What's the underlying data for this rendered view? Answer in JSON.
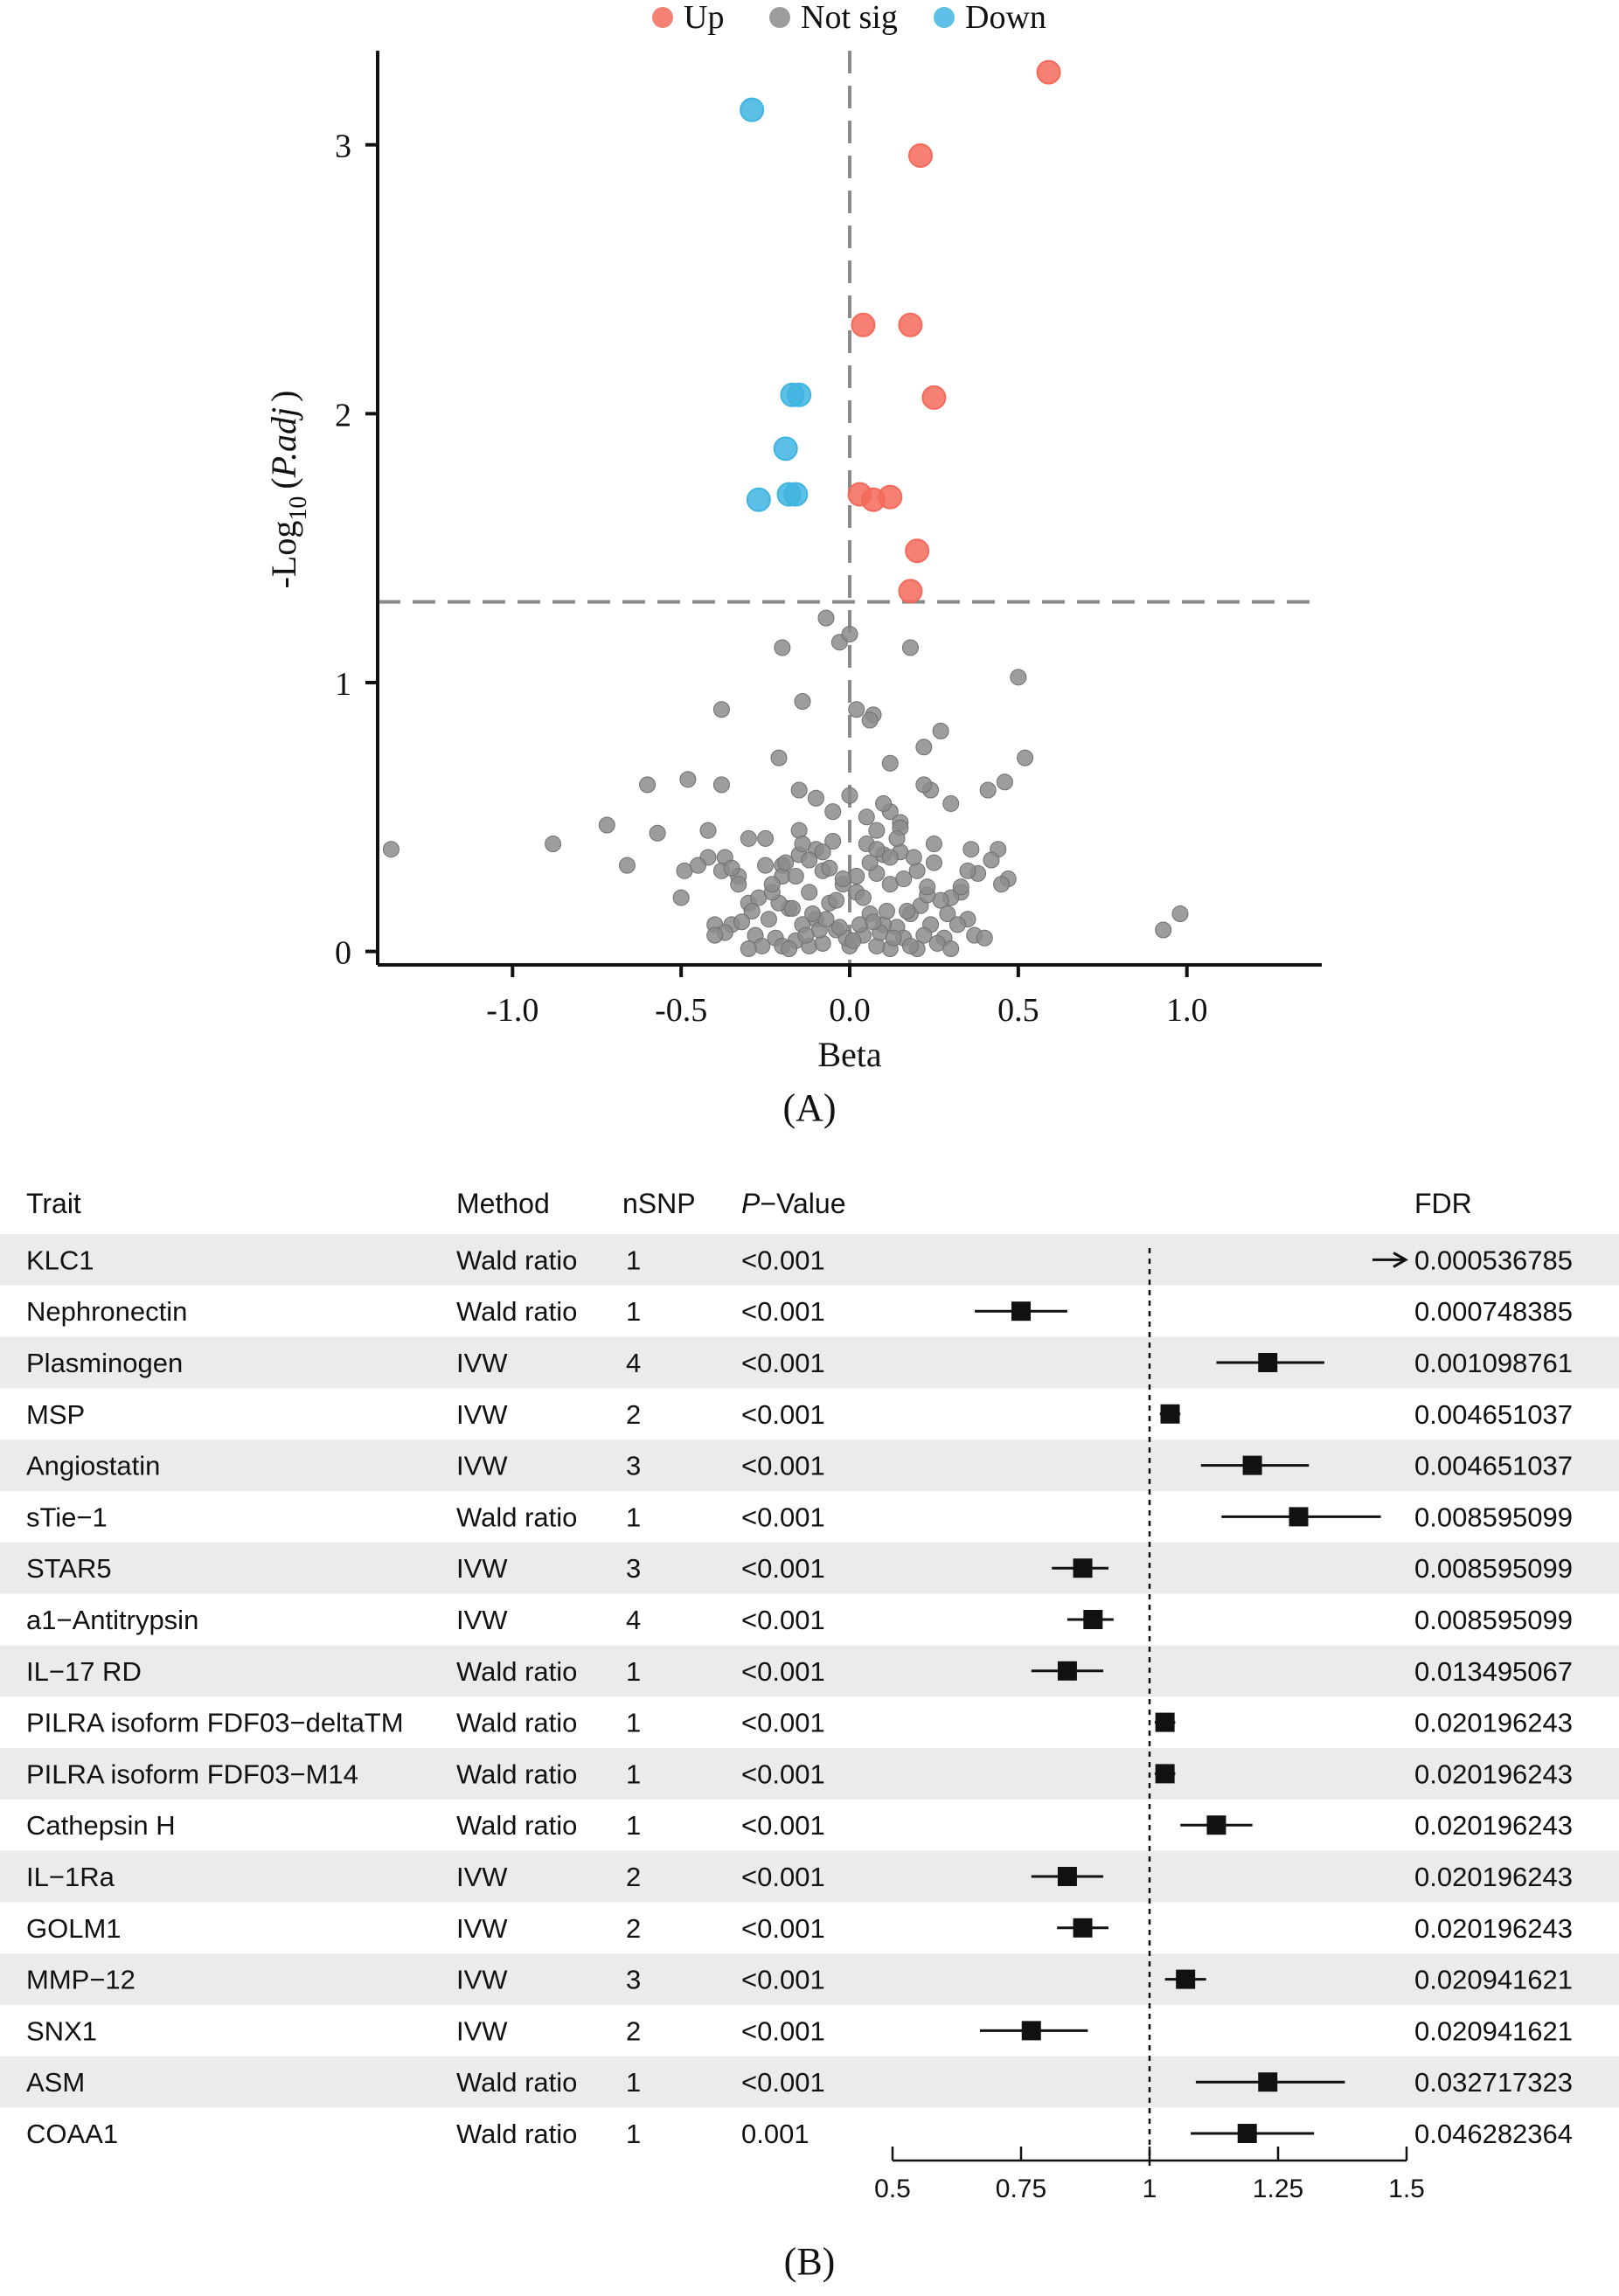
{
  "chart_data": [
    {
      "type": "scatter",
      "panel_label": "(A)",
      "xlabel": "Beta",
      "ylabel_parts": [
        "-Log",
        "10",
        "(",
        "P.adj",
        ")"
      ],
      "xlim": [
        -1.4,
        1.4
      ],
      "ylim": [
        -0.05,
        3.35
      ],
      "xticks": [
        -1.0,
        -0.5,
        0.0,
        0.5,
        1.0
      ],
      "xtick_labels": [
        "-1.0",
        "-0.5",
        "0.0",
        "0.5",
        "1.0"
      ],
      "yticks": [
        0,
        1,
        2,
        3
      ],
      "ytick_labels": [
        "0",
        "1",
        "2",
        "3"
      ],
      "threshold_y": 1.3,
      "threshold_x": 0.0,
      "legend": {
        "position": "top-center",
        "entries": [
          {
            "label": "Up",
            "color": "#f46a5a"
          },
          {
            "label": "Not sig",
            "color": "#8c8c8c"
          },
          {
            "label": "Down",
            "color": "#3fb4e0"
          }
        ]
      },
      "series": [
        {
          "name": "Up",
          "color": "#f46a5a",
          "x": [
            0.59,
            0.21,
            0.04,
            0.18,
            0.25,
            0.03,
            0.07,
            0.12,
            0.2,
            0.18
          ],
          "y": [
            3.27,
            2.96,
            2.33,
            2.33,
            2.06,
            1.7,
            1.68,
            1.69,
            1.49,
            1.34
          ]
        },
        {
          "name": "Down",
          "color": "#3fb4e0",
          "x": [
            -0.29,
            -0.17,
            -0.15,
            -0.19,
            -0.27,
            -0.18,
            -0.16
          ],
          "y": [
            3.13,
            2.07,
            2.07,
            1.87,
            1.68,
            1.7,
            1.7
          ]
        },
        {
          "name": "Not sig",
          "color": "#8c8c8c",
          "x": [
            -0.07,
            0.18,
            -0.03,
            -0.2,
            0.0,
            0.5,
            -0.38,
            0.02,
            0.07,
            -0.14,
            0.06,
            0.22,
            0.27,
            -0.21,
            0.52,
            -0.6,
            -0.48,
            -0.38,
            -0.15,
            0.46,
            0.12,
            0.24,
            -1.36,
            -0.88,
            -0.72,
            -0.57,
            -0.42,
            -0.3,
            0.12,
            0.22,
            0.3,
            0.41,
            -0.66,
            -0.49,
            -0.37,
            -0.2,
            0.08,
            0.15,
            0.36,
            0.44,
            0.47,
            0.93,
            0.98,
            -0.4,
            0.45,
            -0.5,
            -0.33,
            0.33,
            -0.25,
            0.25,
            -0.1,
            0.1,
            -0.05,
            0.05,
            -0.15,
            0.15,
            -0.2,
            0.2,
            -0.3,
            0.3,
            -0.12,
            0.12,
            -0.08,
            0.08,
            -0.02,
            0.02,
            -0.18,
            0.18,
            -0.24,
            0.24,
            -0.35,
            0.35,
            -0.28,
            0.28,
            -0.06,
            0.06,
            -0.14,
            0.14,
            -0.22,
            0.22,
            -0.1,
            0.1,
            -0.04,
            0.04,
            -0.16,
            0.16,
            -0.26,
            0.26,
            -0.12,
            0.12,
            -0.2,
            0.2,
            -0.08,
            0.08,
            -0.3,
            0.3,
            -0.18,
            0.18,
            0.0,
            -0.01,
            0.01,
            -0.09,
            0.09,
            -0.13,
            0.13,
            -0.03,
            0.03,
            -0.07,
            0.07,
            -0.11,
            0.11,
            -0.21,
            0.21,
            -0.27,
            0.27,
            -0.17,
            0.17,
            -0.23,
            0.23,
            -0.33,
            0.33,
            -0.38,
            0.38,
            -0.42,
            0.42,
            -0.45,
            0.05,
            -0.05,
            0.15,
            -0.15,
            0.25,
            -0.25,
            0.35,
            -0.35,
            0.1,
            -0.1,
            0.0,
            0.02,
            -0.02,
            0.06,
            -0.06,
            0.04,
            -0.04,
            0.08,
            -0.08,
            0.12,
            -0.12,
            0.14,
            -0.14,
            0.16,
            -0.16,
            0.19,
            -0.19,
            0.23,
            -0.23,
            0.29,
            -0.29,
            0.32,
            -0.32,
            0.37,
            -0.37,
            0.4,
            -0.4
          ],
          "y": [
            1.24,
            1.13,
            1.15,
            1.13,
            1.18,
            1.02,
            0.9,
            0.9,
            0.88,
            0.93,
            0.86,
            0.76,
            0.82,
            0.72,
            0.72,
            0.62,
            0.64,
            0.62,
            0.6,
            0.63,
            0.7,
            0.6,
            0.38,
            0.4,
            0.47,
            0.44,
            0.45,
            0.42,
            0.52,
            0.62,
            0.55,
            0.6,
            0.32,
            0.3,
            0.35,
            0.32,
            0.45,
            0.48,
            0.38,
            0.38,
            0.27,
            0.08,
            0.14,
            0.1,
            0.25,
            0.2,
            0.28,
            0.22,
            0.32,
            0.33,
            0.38,
            0.36,
            0.41,
            0.4,
            0.36,
            0.37,
            0.28,
            0.3,
            0.18,
            0.2,
            0.22,
            0.25,
            0.3,
            0.29,
            0.25,
            0.22,
            0.16,
            0.14,
            0.12,
            0.1,
            0.1,
            0.12,
            0.06,
            0.05,
            0.18,
            0.14,
            0.1,
            0.09,
            0.05,
            0.06,
            0.12,
            0.1,
            0.08,
            0.06,
            0.04,
            0.05,
            0.02,
            0.03,
            0.02,
            0.01,
            0.02,
            0.01,
            0.03,
            0.02,
            0.01,
            0.01,
            0.01,
            0.02,
            0.02,
            0.05,
            0.04,
            0.08,
            0.07,
            0.06,
            0.05,
            0.09,
            0.1,
            0.12,
            0.11,
            0.14,
            0.15,
            0.18,
            0.17,
            0.2,
            0.19,
            0.16,
            0.15,
            0.22,
            0.21,
            0.25,
            0.24,
            0.3,
            0.29,
            0.35,
            0.34,
            0.32,
            0.5,
            0.52,
            0.46,
            0.45,
            0.4,
            0.42,
            0.3,
            0.31,
            0.55,
            0.57,
            0.58,
            0.28,
            0.27,
            0.33,
            0.31,
            0.2,
            0.19,
            0.38,
            0.37,
            0.35,
            0.34,
            0.42,
            0.4,
            0.27,
            0.28,
            0.35,
            0.33,
            0.24,
            0.25,
            0.14,
            0.15,
            0.1,
            0.11,
            0.06,
            0.07,
            0.05,
            0.06
          ]
        }
      ]
    },
    {
      "type": "forest",
      "panel_label": "(B)",
      "headers": {
        "trait": "Trait",
        "method": "Method",
        "nsnp": "nSNP",
        "p_italic": "P",
        "p_rest": "−Value",
        "fdr": "FDR"
      },
      "xlim": [
        0.5,
        1.5
      ],
      "xticks": [
        0.5,
        0.75,
        1,
        1.25,
        1.5
      ],
      "xtick_labels": [
        "0.5",
        "0.75",
        "1",
        "1.25",
        "1.5"
      ],
      "reference_line": 1,
      "rows": [
        {
          "trait": "KLC1",
          "method": "Wald ratio",
          "nsnp": "1",
          "p": "<0.001",
          "fdr": "0.000536785",
          "or": null,
          "lo": null,
          "hi": null,
          "arrow_right": true
        },
        {
          "trait": "Nephronectin",
          "method": "Wald ratio",
          "nsnp": "1",
          "p": "<0.001",
          "fdr": "0.000748385",
          "or": 0.75,
          "lo": 0.66,
          "hi": 0.84,
          "arrow_right": false
        },
        {
          "trait": "Plasminogen",
          "method": "IVW",
          "nsnp": "4",
          "p": "<0.001",
          "fdr": "0.001098761",
          "or": 1.23,
          "lo": 1.13,
          "hi": 1.34,
          "arrow_right": false
        },
        {
          "trait": "MSP",
          "method": "IVW",
          "nsnp": "2",
          "p": "<0.001",
          "fdr": "0.004651037",
          "or": 1.04,
          "lo": 1.02,
          "hi": 1.06,
          "arrow_right": false
        },
        {
          "trait": "Angiostatin",
          "method": "IVW",
          "nsnp": "3",
          "p": "<0.001",
          "fdr": "0.004651037",
          "or": 1.2,
          "lo": 1.1,
          "hi": 1.31,
          "arrow_right": false
        },
        {
          "trait": "sTie−1",
          "method": "Wald ratio",
          "nsnp": "1",
          "p": "<0.001",
          "fdr": "0.008595099",
          "or": 1.29,
          "lo": 1.14,
          "hi": 1.45,
          "arrow_right": false
        },
        {
          "trait": "STAR5",
          "method": "IVW",
          "nsnp": "3",
          "p": "<0.001",
          "fdr": "0.008595099",
          "or": 0.87,
          "lo": 0.81,
          "hi": 0.92,
          "arrow_right": false
        },
        {
          "trait": "a1−Antitrypsin",
          "method": "IVW",
          "nsnp": "4",
          "p": "<0.001",
          "fdr": "0.008595099",
          "or": 0.89,
          "lo": 0.84,
          "hi": 0.93,
          "arrow_right": false
        },
        {
          "trait": "IL−17 RD",
          "method": "Wald ratio",
          "nsnp": "1",
          "p": "<0.001",
          "fdr": "0.013495067",
          "or": 0.84,
          "lo": 0.77,
          "hi": 0.91,
          "arrow_right": false
        },
        {
          "trait": "PILRA isoform FDF03−deltaTM",
          "method": "Wald ratio",
          "nsnp": "1",
          "p": "<0.001",
          "fdr": "0.020196243",
          "or": 1.03,
          "lo": 1.01,
          "hi": 1.05,
          "arrow_right": false
        },
        {
          "trait": "PILRA isoform FDF03−M14",
          "method": "Wald ratio",
          "nsnp": "1",
          "p": "<0.001",
          "fdr": "0.020196243",
          "or": 1.03,
          "lo": 1.01,
          "hi": 1.05,
          "arrow_right": false
        },
        {
          "trait": "Cathepsin H",
          "method": "Wald ratio",
          "nsnp": "1",
          "p": "<0.001",
          "fdr": "0.020196243",
          "or": 1.13,
          "lo": 1.06,
          "hi": 1.2,
          "arrow_right": false
        },
        {
          "trait": "IL−1Ra",
          "method": "IVW",
          "nsnp": "2",
          "p": "<0.001",
          "fdr": "0.020196243",
          "or": 0.84,
          "lo": 0.77,
          "hi": 0.91,
          "arrow_right": false
        },
        {
          "trait": "GOLM1",
          "method": "IVW",
          "nsnp": "2",
          "p": "<0.001",
          "fdr": "0.020196243",
          "or": 0.87,
          "lo": 0.82,
          "hi": 0.92,
          "arrow_right": false
        },
        {
          "trait": "MMP−12",
          "method": "IVW",
          "nsnp": "3",
          "p": "<0.001",
          "fdr": "0.020941621",
          "or": 1.07,
          "lo": 1.03,
          "hi": 1.11,
          "arrow_right": false
        },
        {
          "trait": "SNX1",
          "method": "IVW",
          "nsnp": "2",
          "p": "<0.001",
          "fdr": "0.020941621",
          "or": 0.77,
          "lo": 0.67,
          "hi": 0.88,
          "arrow_right": false
        },
        {
          "trait": "ASM",
          "method": "Wald ratio",
          "nsnp": "1",
          "p": "<0.001",
          "fdr": "0.032717323",
          "or": 1.23,
          "lo": 1.09,
          "hi": 1.38,
          "arrow_right": false
        },
        {
          "trait": "COAA1",
          "method": "Wald ratio",
          "nsnp": "1",
          "p": "0.001",
          "fdr": "0.046282364",
          "or": 1.19,
          "lo": 1.08,
          "hi": 1.32,
          "arrow_right": false
        }
      ]
    }
  ]
}
